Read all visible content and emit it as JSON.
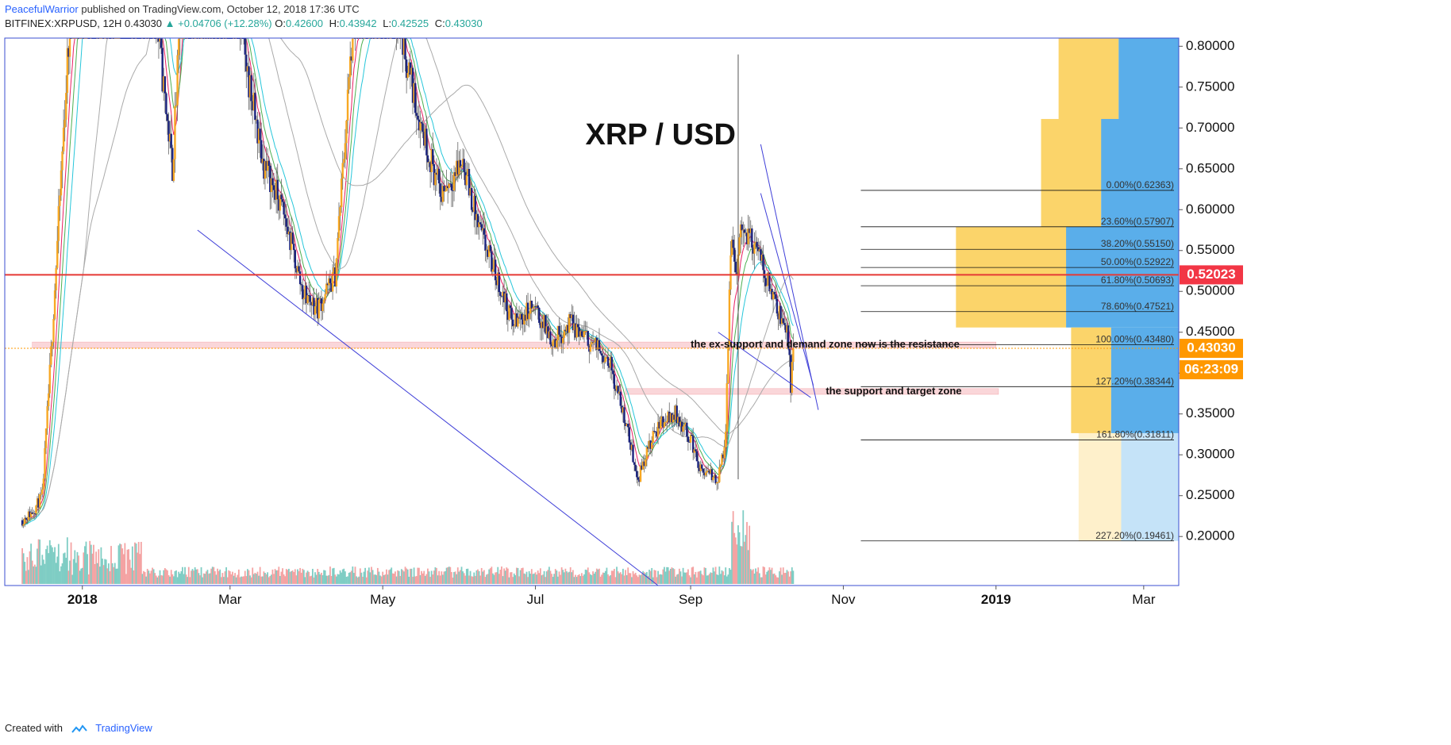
{
  "header": {
    "author": "PeacefulWarrior",
    "published": "published on TradingView.com, October 12, 2018 17:36 UTC",
    "symbol": "BITFINEX:XRPUSD, 12H",
    "last": "0.43030",
    "change": "▲ +0.04706 (+12.28%)",
    "ohlc": [
      {
        "label": "O:",
        "value": "0.42600"
      },
      {
        "label": "H:",
        "value": "0.43942"
      },
      {
        "label": "L:",
        "value": "0.42525"
      },
      {
        "label": "C:",
        "value": "0.43030"
      }
    ]
  },
  "footer": {
    "created_with": "Created with",
    "brand": "TradingView"
  },
  "chart_data": {
    "type": "line",
    "title": "XRP / USD",
    "x_axis": {
      "tick_labels": [
        "2018",
        "Mar",
        "May",
        "Jul",
        "Sep",
        "Nov",
        "2019",
        "Mar"
      ]
    },
    "y_axis": {
      "range": [
        0.14,
        0.81
      ],
      "tick_values": [
        0.2,
        0.25,
        0.3,
        0.35,
        0.4,
        0.45,
        0.5,
        0.55,
        0.6,
        0.65,
        0.7,
        0.75,
        0.8
      ],
      "tick_labels": [
        "0.20000",
        "0.25000",
        "0.30000",
        "0.35000",
        "0.40000",
        "0.45000",
        "0.50000",
        "0.55000",
        "0.60000",
        "0.65000",
        "0.70000",
        "0.75000",
        "0.80000"
      ]
    },
    "price_series": {
      "times": [
        "2017-12-08",
        "2017-12-12",
        "2017-12-16",
        "2017-12-20",
        "2017-12-26",
        "2018-01-03",
        "2018-01-06",
        "2018-01-16",
        "2018-01-30",
        "2018-02-06",
        "2018-02-12",
        "2018-02-26",
        "2018-03-05",
        "2018-03-14",
        "2018-03-22",
        "2018-03-30",
        "2018-04-05",
        "2018-04-12",
        "2018-04-19",
        "2018-04-26",
        "2018-05-05",
        "2018-05-15",
        "2018-05-24",
        "2018-06-02",
        "2018-06-08",
        "2018-06-14",
        "2018-06-22",
        "2018-06-30",
        "2018-07-08",
        "2018-07-15",
        "2018-07-22",
        "2018-07-30",
        "2018-08-06",
        "2018-08-11",
        "2018-08-14",
        "2018-08-20",
        "2018-08-26",
        "2018-09-01",
        "2018-09-05",
        "2018-09-12",
        "2018-09-15",
        "2018-09-17",
        "2018-09-19",
        "2018-09-21",
        "2018-09-26",
        "2018-10-01",
        "2018-10-06",
        "2018-10-10",
        "2018-10-11",
        "2018-10-12"
      ],
      "values": [
        0.22,
        0.23,
        0.25,
        0.45,
        0.78,
        1.1,
        0.9,
        1.2,
        0.85,
        0.65,
        1.0,
        0.9,
        0.82,
        0.66,
        0.6,
        0.5,
        0.48,
        0.52,
        0.82,
        0.88,
        0.86,
        0.72,
        0.62,
        0.66,
        0.58,
        0.53,
        0.46,
        0.48,
        0.44,
        0.46,
        0.44,
        0.42,
        0.34,
        0.27,
        0.3,
        0.34,
        0.35,
        0.32,
        0.28,
        0.27,
        0.32,
        0.56,
        0.52,
        0.58,
        0.56,
        0.52,
        0.48,
        0.44,
        0.38,
        0.4303
      ]
    },
    "current_price": 0.4303,
    "resistance_price": 0.52023,
    "price_labels": [
      {
        "label": "0.52023",
        "value": 0.52023,
        "color": "#f23645"
      },
      {
        "label": "0.43030",
        "value": 0.4303,
        "color": "#ff9800"
      },
      {
        "label": "06:23:09",
        "color": "#ff9800"
      }
    ],
    "fib_levels": [
      {
        "label": "0.00%(0.62363)",
        "value": 0.62363
      },
      {
        "label": "23.60%(0.57907)",
        "value": 0.57907
      },
      {
        "label": "38.20%(0.55150)",
        "value": 0.5515
      },
      {
        "label": "50.00%(0.52922)",
        "value": 0.52922
      },
      {
        "label": "61.80%(0.50693)",
        "value": 0.50693
      },
      {
        "label": "78.60%(0.47521)",
        "value": 0.47521
      },
      {
        "label": "100.00%(0.43480)",
        "value": 0.4348
      },
      {
        "label": "127.20%(0.38344)",
        "value": 0.38344
      },
      {
        "label": "161.80%(0.31811)",
        "value": 0.31811
      },
      {
        "label": "227.20%(0.19461)",
        "value": 0.19461
      }
    ],
    "zones": [
      {
        "label": "the ex-support and demand zone now is the resistance",
        "range": [
          0.4305,
          0.438
        ]
      },
      {
        "label": "the support and target zone",
        "range": [
          0.374,
          0.381
        ]
      }
    ],
    "colors": {
      "up": "#f7a824",
      "down": "#1a237e",
      "ema_red": "#e91e63",
      "ema_green": "#4caf50",
      "ema_blue": "#26c6da",
      "sma_gray": "#aaaaaa",
      "resistance": "#e53935",
      "trend": "#3f3fd8",
      "fib_yellow": "#fbd46a",
      "fib_blue": "#5aaeea"
    }
  }
}
